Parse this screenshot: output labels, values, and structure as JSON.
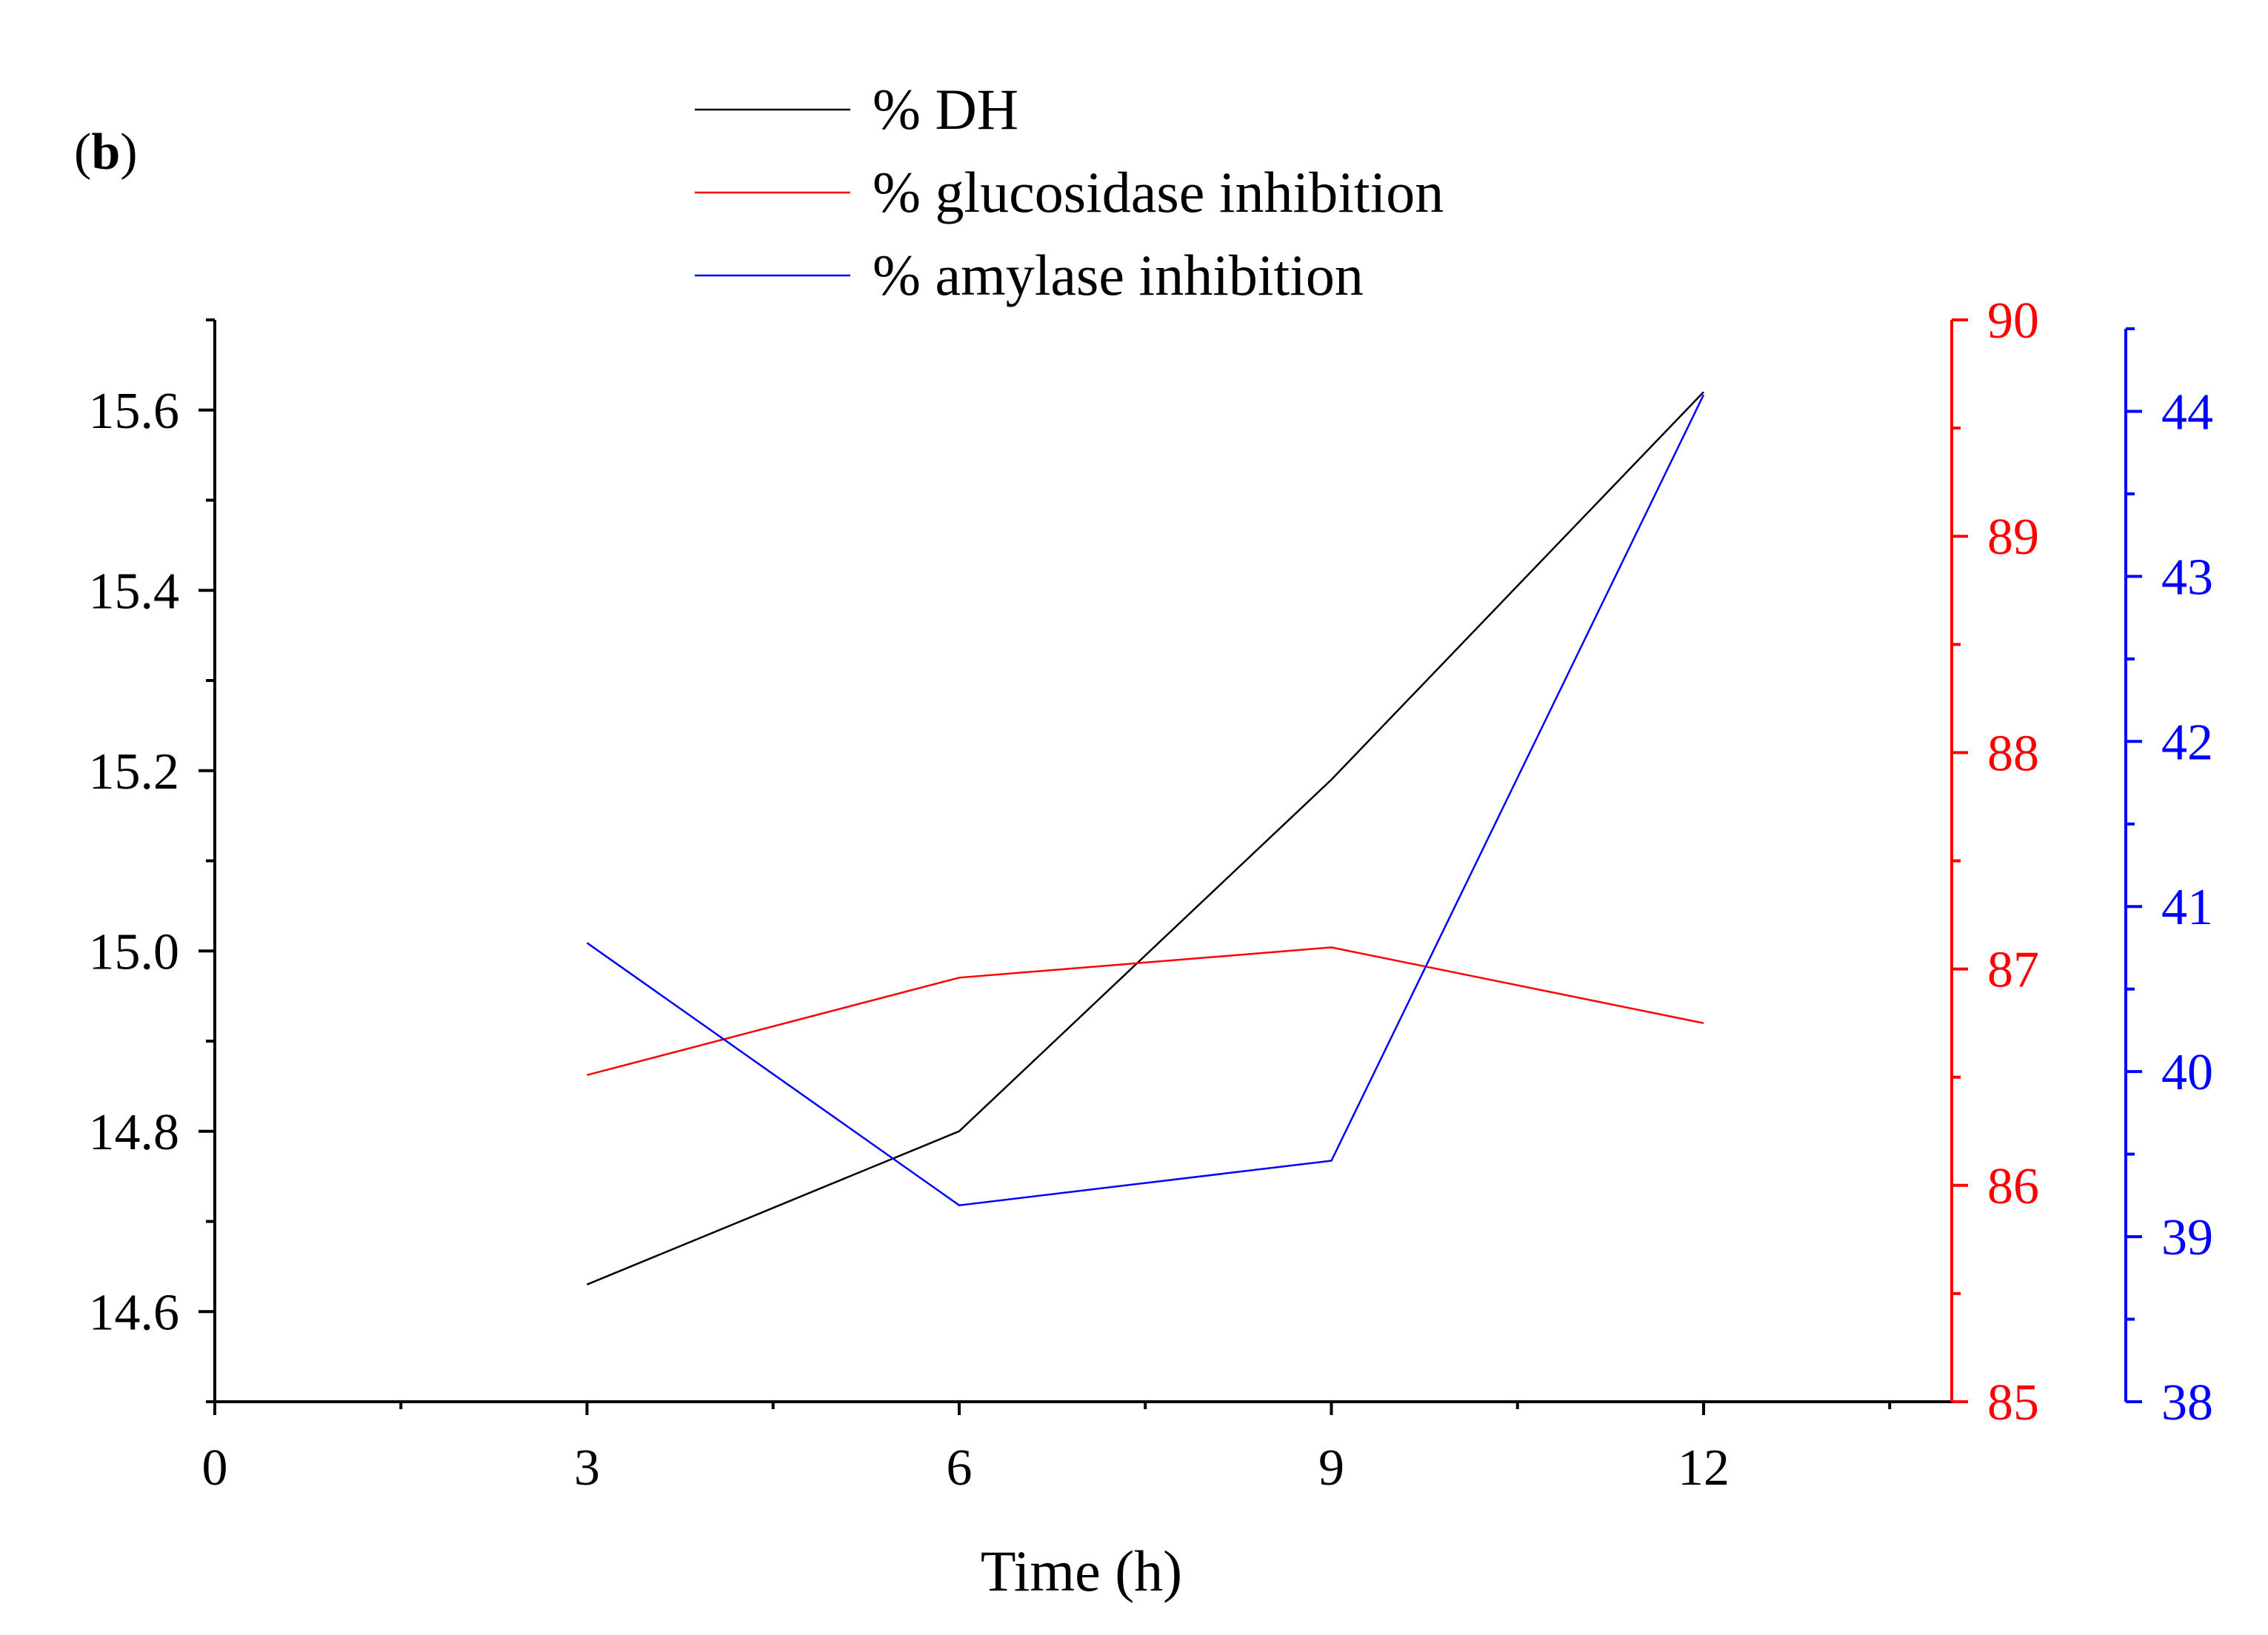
{
  "chart_data": {
    "type": "line",
    "panel_label": "b",
    "xlabel": "Time (h)",
    "x_axis": {
      "min": 0,
      "max": 14,
      "ticks": [
        0,
        3,
        6,
        9,
        12
      ]
    },
    "axes": [
      {
        "id": "left",
        "side": "left",
        "min": 14.5,
        "max": 15.7,
        "ticks": [
          14.6,
          14.8,
          15.0,
          15.2,
          15.4,
          15.6
        ],
        "decimals": 1,
        "color": "#000000"
      },
      {
        "id": "right1",
        "side": "right",
        "min": 85,
        "max": 90,
        "ticks": [
          85,
          86,
          87,
          88,
          89,
          90
        ],
        "decimals": 0,
        "color": "#ff0000"
      },
      {
        "id": "right2",
        "side": "right-offset",
        "min": 38,
        "max": 44.5,
        "ticks": [
          38,
          39,
          40,
          41,
          42,
          43,
          44
        ],
        "decimals": 0,
        "color": "#0000ff"
      }
    ],
    "x": [
      3,
      6,
      9,
      12
    ],
    "series": [
      {
        "name": "% DH",
        "axis": "left",
        "color": "#000000",
        "values": [
          14.63,
          14.8,
          15.19,
          15.62
        ]
      },
      {
        "name": "% glucosidase inhibition",
        "axis": "right1",
        "color": "#ff0000",
        "values": [
          86.51,
          86.96,
          87.1,
          86.75
        ]
      },
      {
        "name": "% amylase inhibition",
        "axis": "right2",
        "color": "#0000ff",
        "values": [
          40.78,
          39.19,
          39.46,
          44.1
        ]
      }
    ],
    "legend_position": "top-center",
    "grid": false
  }
}
